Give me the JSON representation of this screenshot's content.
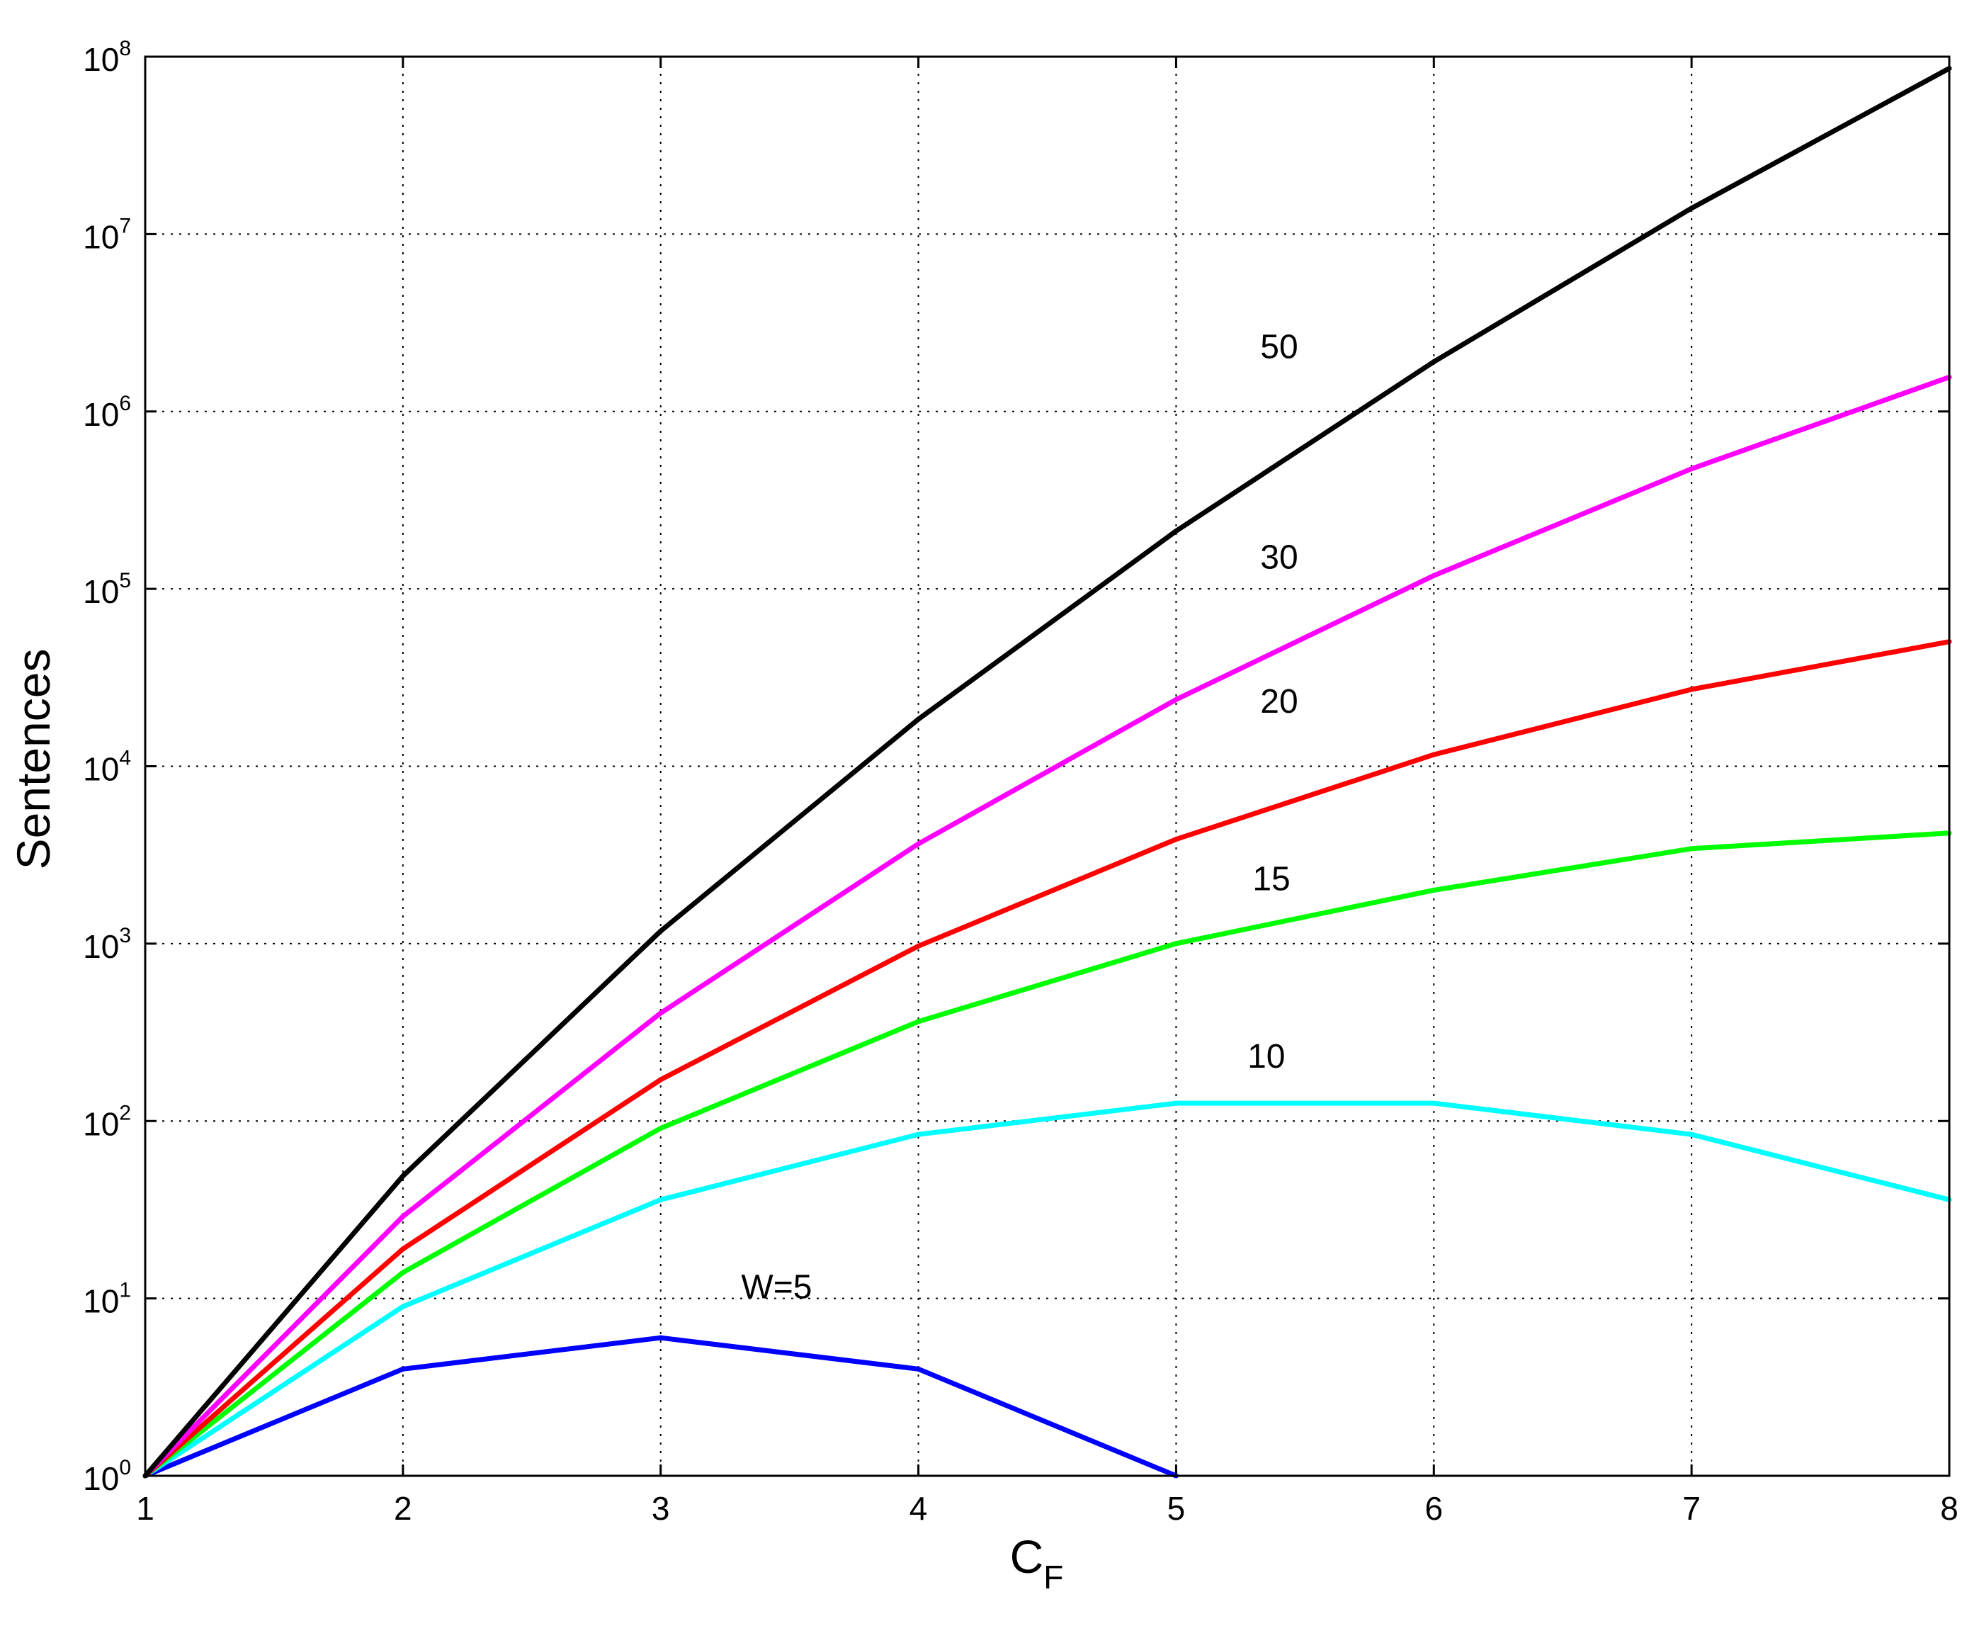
{
  "chart_data": {
    "type": "line",
    "xlabel": "C",
    "xlabel_sub": "F",
    "ylabel": "Sentences",
    "x_scale": "linear",
    "y_scale": "log",
    "xlim": [
      1,
      8
    ],
    "ylim": [
      1,
      100000000
    ],
    "grid": true,
    "x_ticks": [
      "1",
      "2",
      "3",
      "4",
      "5",
      "6",
      "7",
      "8"
    ],
    "x_tick_values": [
      1,
      2,
      3,
      4,
      5,
      6,
      7,
      8
    ],
    "y_tick_exponents": [
      0,
      1,
      2,
      3,
      4,
      5,
      6,
      7,
      8
    ],
    "y_tick_base": "10",
    "series": [
      {
        "label": "W=5",
        "color": "#0000ff",
        "x": [
          1,
          2,
          3,
          4,
          5
        ],
        "y": [
          1,
          4,
          6,
          4,
          1
        ]
      },
      {
        "label": "10",
        "color": "#00ffff",
        "x": [
          1,
          2,
          3,
          4,
          5,
          6,
          7,
          8
        ],
        "y": [
          1,
          9,
          36,
          84,
          126,
          126,
          84,
          36
        ]
      },
      {
        "label": "15",
        "color": "#00ff00",
        "x": [
          1,
          2,
          3,
          4,
          5,
          6,
          7,
          8
        ],
        "y": [
          1,
          14,
          91,
          364,
          1001,
          2002,
          3432,
          4200
        ]
      },
      {
        "label": "20",
        "color": "#ff0000",
        "x": [
          1,
          2,
          3,
          4,
          5,
          6,
          7,
          8
        ],
        "y": [
          1,
          19,
          171,
          969,
          3876,
          11628,
          27132,
          50388
        ]
      },
      {
        "label": "30",
        "color": "#ff00ff",
        "x": [
          1,
          2,
          3,
          4,
          5,
          6,
          7,
          8
        ],
        "y": [
          1,
          29,
          406,
          3654,
          23751,
          118755,
          475020,
          1560780
        ]
      },
      {
        "label": "50",
        "color": "#000000",
        "x": [
          1,
          2,
          3,
          4,
          5,
          6,
          7,
          8
        ],
        "y": [
          1,
          49,
          1176,
          18424,
          211876,
          1906884,
          13983816,
          85900584
        ]
      }
    ],
    "annotations": [
      {
        "text": "W=5",
        "x": 3.45,
        "y": 10,
        "series": "W=5"
      },
      {
        "text": "10",
        "x": 5.35,
        "y": 200,
        "series": "10"
      },
      {
        "text": "15",
        "x": 5.37,
        "y": 2000,
        "series": "15"
      },
      {
        "text": "20",
        "x": 5.4,
        "y": 20000,
        "series": "20"
      },
      {
        "text": "30",
        "x": 5.4,
        "y": 130000,
        "series": "30"
      },
      {
        "text": "50",
        "x": 5.4,
        "y": 2000000,
        "series": "50"
      }
    ]
  }
}
